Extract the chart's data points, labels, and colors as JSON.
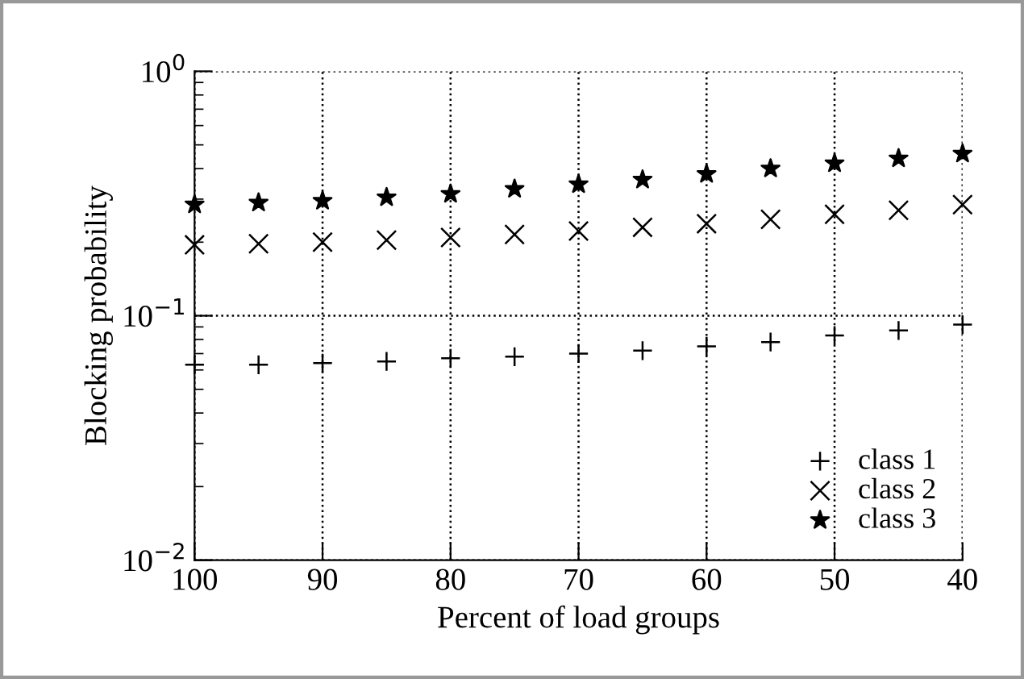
{
  "chart_data": {
    "type": "scatter",
    "xlabel": "Percent of load groups",
    "ylabel": "Blocking probability",
    "x": [
      100,
      95,
      90,
      85,
      80,
      75,
      70,
      65,
      60,
      55,
      50,
      45,
      40
    ],
    "series": [
      {
        "name": "class 1",
        "color": "#000000",
        "marker": "plus",
        "values": [
          0.063,
          0.063,
          0.064,
          0.065,
          0.067,
          0.068,
          0.07,
          0.072,
          0.075,
          0.078,
          0.083,
          0.087,
          0.092
        ]
      },
      {
        "name": "class 2",
        "color": "#000000",
        "marker": "cross",
        "values": [
          0.195,
          0.197,
          0.2,
          0.204,
          0.209,
          0.215,
          0.222,
          0.23,
          0.238,
          0.248,
          0.26,
          0.27,
          0.285
        ]
      },
      {
        "name": "class 3",
        "color": "#000000",
        "marker": "star",
        "values": [
          0.285,
          0.29,
          0.295,
          0.305,
          0.315,
          0.33,
          0.345,
          0.36,
          0.38,
          0.4,
          0.42,
          0.44,
          0.46
        ]
      }
    ],
    "log": "y",
    "xlim": [
      100,
      40
    ],
    "xticks": [
      100,
      90,
      80,
      70,
      60,
      50,
      40
    ],
    "ylim": [
      0.01,
      1
    ],
    "yticks": [
      {
        "value": 0.01,
        "label": "10$^{−2}$"
      },
      {
        "value": 0.1,
        "label": "10$^{−1}$"
      },
      {
        "value": 1,
        "label": "10$^{0}$"
      }
    ],
    "grid": true,
    "legend": "bottom right"
  }
}
